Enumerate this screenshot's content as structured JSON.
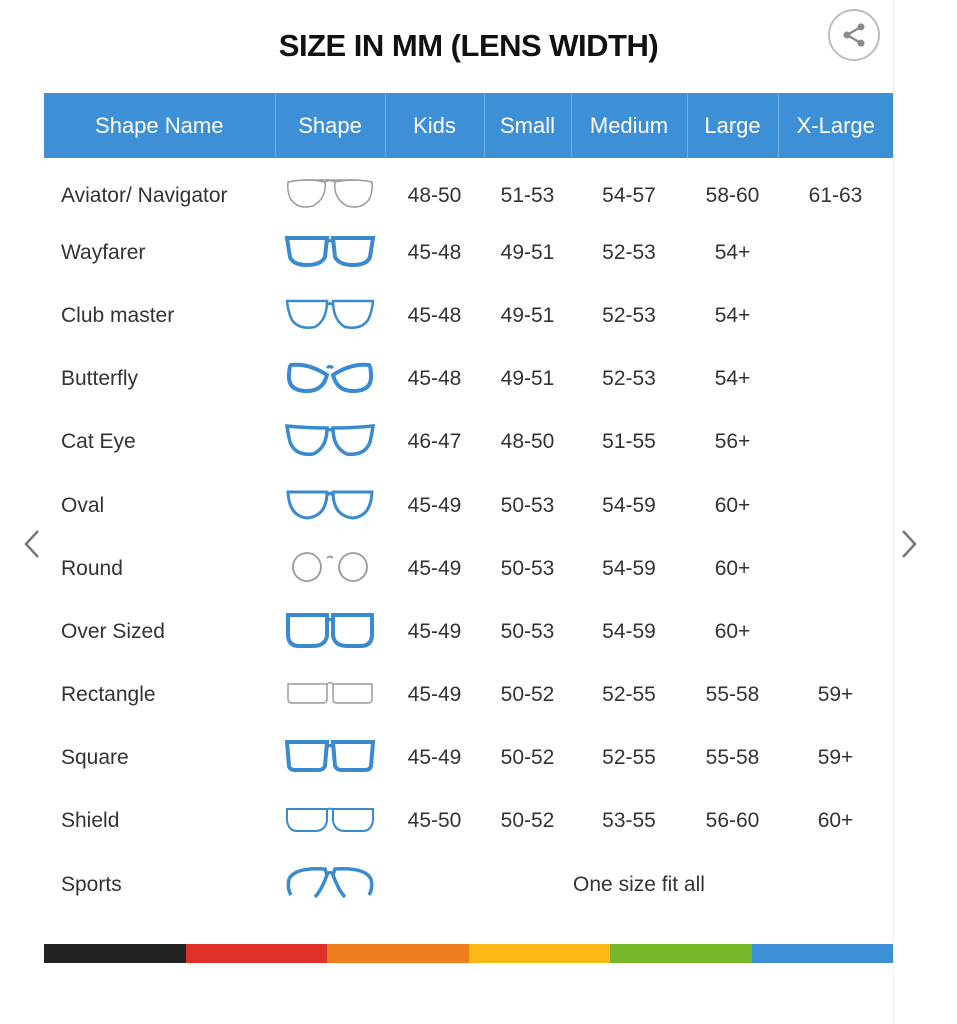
{
  "title": "SIZE IN MM (LENS WIDTH)",
  "icons": {
    "share": "share-icon",
    "prev": "chevron-left-icon",
    "next": "chevron-right-icon"
  },
  "colors": {
    "header": "#3d8fd6",
    "frame_blue": "#3a8ad0",
    "frame_gray": "#9a9a9a",
    "bar": [
      "#222222",
      "#e03128",
      "#ee7d1d",
      "#fbb713",
      "#76b82a",
      "#3d8fd6"
    ]
  },
  "table": {
    "headers": [
      "Shape Name",
      "Shape",
      "Kids",
      "Small",
      "Medium",
      "Large",
      "X-Large"
    ],
    "rows": [
      {
        "name": "Aviator/ Navigator",
        "shape": "aviator",
        "kids": "48-50",
        "small": "51-53",
        "medium": "54-57",
        "large": "58-60",
        "xlarge": "61-63"
      },
      {
        "name": "Wayfarer",
        "shape": "wayfarer",
        "kids": "45-48",
        "small": "49-51",
        "medium": "52-53",
        "large": "54+",
        "xlarge": ""
      },
      {
        "name": "Club master",
        "shape": "clubmaster",
        "kids": "45-48",
        "small": "49-51",
        "medium": "52-53",
        "large": "54+",
        "xlarge": ""
      },
      {
        "name": "Butterfly",
        "shape": "butterfly",
        "kids": "45-48",
        "small": "49-51",
        "medium": "52-53",
        "large": "54+",
        "xlarge": ""
      },
      {
        "name": "Cat Eye",
        "shape": "cateye",
        "kids": "46-47",
        "small": "48-50",
        "medium": "51-55",
        "large": "56+",
        "xlarge": ""
      },
      {
        "name": "Oval",
        "shape": "oval",
        "kids": "45-49",
        "small": "50-53",
        "medium": "54-59",
        "large": "60+",
        "xlarge": ""
      },
      {
        "name": "Round",
        "shape": "round",
        "kids": "45-49",
        "small": "50-53",
        "medium": "54-59",
        "large": "60+",
        "xlarge": ""
      },
      {
        "name": "Over Sized",
        "shape": "oversized",
        "kids": "45-49",
        "small": "50-53",
        "medium": "54-59",
        "large": "60+",
        "xlarge": ""
      },
      {
        "name": "Rectangle",
        "shape": "rectangle",
        "kids": "45-49",
        "small": "50-52",
        "medium": "52-55",
        "large": "55-58",
        "xlarge": "59+"
      },
      {
        "name": "Square",
        "shape": "square",
        "kids": "45-49",
        "small": "50-52",
        "medium": "52-55",
        "large": "55-58",
        "xlarge": "59+"
      },
      {
        "name": "Shield",
        "shape": "shield",
        "kids": "45-50",
        "small": "50-52",
        "medium": "53-55",
        "large": "56-60",
        "xlarge": "60+"
      }
    ],
    "sports": {
      "name": "Sports",
      "shape": "sports",
      "note": "One size fit all"
    }
  }
}
